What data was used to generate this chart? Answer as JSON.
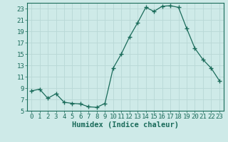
{
  "x": [
    0,
    1,
    2,
    3,
    4,
    5,
    6,
    7,
    8,
    9,
    10,
    11,
    12,
    13,
    14,
    15,
    16,
    17,
    18,
    19,
    20,
    21,
    22,
    23
  ],
  "y": [
    8.5,
    8.8,
    7.2,
    8.0,
    6.5,
    6.3,
    6.2,
    5.7,
    5.6,
    6.3,
    12.5,
    15.0,
    18.0,
    20.5,
    23.2,
    22.5,
    23.4,
    23.5,
    23.2,
    19.5,
    16.0,
    14.0,
    12.5,
    10.3
  ],
  "line_color": "#1a6b5a",
  "marker": "D",
  "marker_size": 2.2,
  "bg_color": "#ceeae8",
  "grid_color": "#b8d8d6",
  "axis_color": "#1a6b5a",
  "xlabel": "Humidex (Indice chaleur)",
  "xlabel_fontsize": 7.5,
  "tick_fontsize": 6.5,
  "ylim": [
    5,
    24
  ],
  "yticks": [
    5,
    7,
    9,
    11,
    13,
    15,
    17,
    19,
    21,
    23
  ],
  "xticks": [
    0,
    1,
    2,
    3,
    4,
    5,
    6,
    7,
    8,
    9,
    10,
    11,
    12,
    13,
    14,
    15,
    16,
    17,
    18,
    19,
    20,
    21,
    22,
    23
  ]
}
